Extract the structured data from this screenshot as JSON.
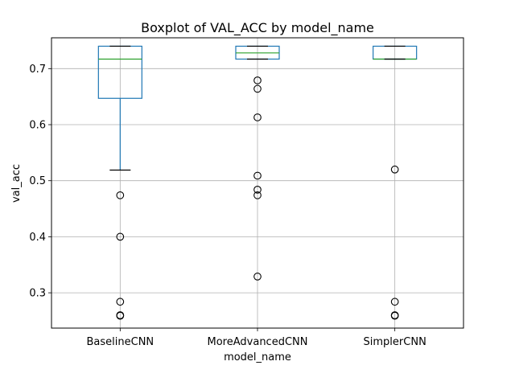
{
  "chart_data": {
    "type": "box",
    "title": "Boxplot of VAL_ACC by model_name",
    "xlabel": "model_name",
    "ylabel": "val_acc",
    "ylim": [
      0.237,
      0.755
    ],
    "yticks": [
      0.3,
      0.4,
      0.5,
      0.6,
      0.7
    ],
    "ytick_labels": [
      "0.3",
      "0.4",
      "0.5",
      "0.6",
      "0.7"
    ],
    "grid": true,
    "colors": {
      "box": "#1f77b4",
      "median": "#2ca02c",
      "whisker": "#1f77b4",
      "cap": "#000000",
      "grid": "#b0b0b0",
      "outlier": "#000000"
    },
    "categories": [
      "BaselineCNN",
      "MoreAdvancedCNN",
      "SimplerCNN"
    ],
    "boxes": [
      {
        "name": "BaselineCNN",
        "q1": 0.647,
        "median": 0.717,
        "q3": 0.74,
        "whisker_low": 0.519,
        "whisker_high": 0.74,
        "outliers": [
          0.474,
          0.4,
          0.284,
          0.26,
          0.259
        ]
      },
      {
        "name": "MoreAdvancedCNN",
        "q1": 0.717,
        "median": 0.728,
        "q3": 0.74,
        "whisker_low": 0.717,
        "whisker_high": 0.74,
        "outliers": [
          0.679,
          0.664,
          0.613,
          0.509,
          0.484,
          0.474,
          0.329
        ]
      },
      {
        "name": "SimplerCNN",
        "q1": 0.717,
        "median": 0.717,
        "q3": 0.74,
        "whisker_low": 0.717,
        "whisker_high": 0.74,
        "outliers": [
          0.52,
          0.284,
          0.26,
          0.259
        ]
      }
    ]
  }
}
